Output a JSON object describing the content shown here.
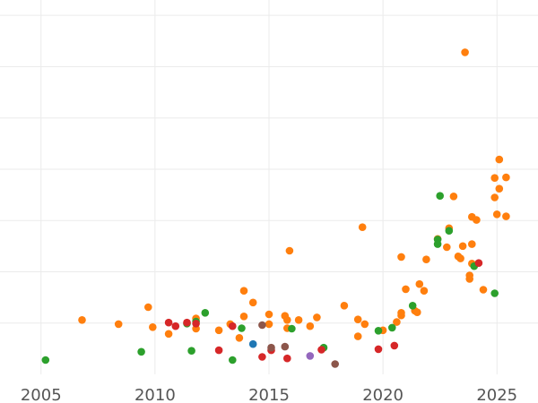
{
  "chart_data": {
    "type": "scatter",
    "title": "",
    "xlabel": "",
    "ylabel": "",
    "xlim": [
      2003.2,
      2026.8
    ],
    "ylim": [
      -0.5,
      6.8
    ],
    "x_ticks": [
      2005,
      2010,
      2015,
      2020,
      2025
    ],
    "x_tick_labels": [
      "2005",
      "2010",
      "2015",
      "2020",
      "2025"
    ],
    "y_grid_values": [
      0.5,
      1.5,
      2.5,
      3.5,
      4.5,
      5.5,
      6.5
    ],
    "grid": true,
    "legend": "none",
    "colors": {
      "orange": "#ff7f0e",
      "green": "#2ca02c",
      "red": "#d62728",
      "blue": "#1f77b4",
      "brown": "#8c564b",
      "purple": "#9467bd"
    },
    "series": [
      {
        "color_key": "orange",
        "points": [
          [
            2006.8,
            0.56
          ],
          [
            2008.4,
            0.48
          ],
          [
            2009.7,
            0.81
          ],
          [
            2009.9,
            0.42
          ],
          [
            2010.6,
            0.29
          ],
          [
            2011.8,
            0.59
          ],
          [
            2011.8,
            0.39
          ],
          [
            2012.8,
            0.36
          ],
          [
            2013.3,
            0.48
          ],
          [
            2013.7,
            0.21
          ],
          [
            2013.9,
            0.63
          ],
          [
            2013.9,
            1.13
          ],
          [
            2014.3,
            0.9
          ],
          [
            2015.0,
            0.48
          ],
          [
            2015.0,
            0.67
          ],
          [
            2015.7,
            0.64
          ],
          [
            2015.8,
            0.56
          ],
          [
            2015.8,
            0.4
          ],
          [
            2015.9,
            1.91
          ],
          [
            2016.3,
            0.56
          ],
          [
            2016.8,
            0.44
          ],
          [
            2017.1,
            0.61
          ],
          [
            2018.3,
            0.84
          ],
          [
            2018.9,
            0.24
          ],
          [
            2018.9,
            0.57
          ],
          [
            2019.2,
            0.48
          ],
          [
            2019.1,
            2.37
          ],
          [
            2020.0,
            0.36
          ],
          [
            2020.6,
            0.52
          ],
          [
            2020.8,
            0.65
          ],
          [
            2020.8,
            0.7
          ],
          [
            2020.8,
            1.79
          ],
          [
            2021.0,
            1.16
          ],
          [
            2021.4,
            0.74
          ],
          [
            2021.5,
            0.71
          ],
          [
            2021.6,
            1.26
          ],
          [
            2021.8,
            1.13
          ],
          [
            2021.9,
            1.74
          ],
          [
            2022.4,
            2.14
          ],
          [
            2022.8,
            1.98
          ],
          [
            2022.9,
            2.35
          ],
          [
            2023.1,
            2.97
          ],
          [
            2023.3,
            1.8
          ],
          [
            2023.4,
            1.76
          ],
          [
            2023.5,
            2.0
          ],
          [
            2023.6,
            5.78
          ],
          [
            2023.8,
            1.43
          ],
          [
            2023.8,
            1.36
          ],
          [
            2023.9,
            1.66
          ],
          [
            2023.9,
            2.04
          ],
          [
            2023.9,
            2.57
          ],
          [
            2024.1,
            2.51
          ],
          [
            2024.4,
            1.15
          ],
          [
            2024.9,
            2.95
          ],
          [
            2024.9,
            3.33
          ],
          [
            2025.0,
            2.62
          ],
          [
            2025.1,
            3.12
          ],
          [
            2025.1,
            3.69
          ],
          [
            2025.4,
            2.58
          ],
          [
            2025.4,
            3.34
          ]
        ]
      },
      {
        "color_key": "green",
        "points": [
          [
            2005.2,
            -0.22
          ],
          [
            2009.4,
            -0.06
          ],
          [
            2011.4,
            0.49
          ],
          [
            2011.6,
            -0.04
          ],
          [
            2011.8,
            0.53
          ],
          [
            2012.2,
            0.7
          ],
          [
            2013.4,
            -0.22
          ],
          [
            2013.8,
            0.4
          ],
          [
            2016.0,
            0.39
          ],
          [
            2017.4,
            0.02
          ],
          [
            2019.8,
            0.35
          ],
          [
            2020.4,
            0.41
          ],
          [
            2021.3,
            0.84
          ],
          [
            2022.4,
            2.13
          ],
          [
            2022.4,
            2.04
          ],
          [
            2022.5,
            2.98
          ],
          [
            2022.9,
            2.3
          ],
          [
            2024.0,
            1.61
          ],
          [
            2024.9,
            1.08
          ]
        ]
      },
      {
        "color_key": "red",
        "points": [
          [
            2010.6,
            0.51
          ],
          [
            2010.9,
            0.44
          ],
          [
            2011.4,
            0.51
          ],
          [
            2011.8,
            0.49
          ],
          [
            2012.8,
            -0.03
          ],
          [
            2013.4,
            0.44
          ],
          [
            2014.7,
            -0.16
          ],
          [
            2015.1,
            -0.03
          ],
          [
            2015.8,
            -0.19
          ],
          [
            2017.3,
            -0.02
          ],
          [
            2019.8,
            -0.01
          ],
          [
            2020.5,
            0.06
          ],
          [
            2024.2,
            1.67
          ]
        ]
      },
      {
        "color_key": "blue",
        "points": [
          [
            2014.3,
            0.09
          ]
        ]
      },
      {
        "color_key": "brown",
        "points": [
          [
            2014.7,
            0.46
          ],
          [
            2015.1,
            0.02
          ],
          [
            2015.7,
            0.04
          ],
          [
            2017.9,
            -0.3
          ]
        ]
      },
      {
        "color_key": "purple",
        "points": [
          [
            2016.8,
            -0.14
          ]
        ]
      }
    ]
  }
}
